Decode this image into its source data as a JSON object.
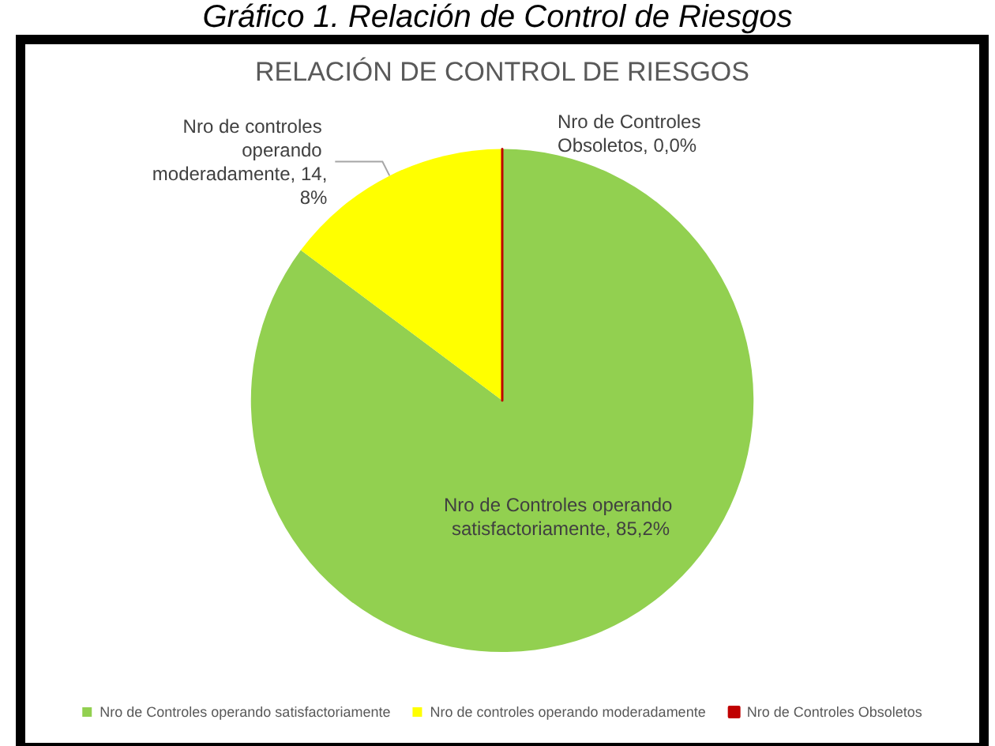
{
  "chart_data": {
    "type": "pie",
    "title": "RELACIÓN DE CONTROL DE RIESGOS",
    "annotations": [
      "Gráfico 1. Relación de Control de Riesgos"
    ],
    "categories": [
      "Nro de Controles operando satisfactoriamente",
      "Nro de controles operando moderadamente",
      "Nro de Controles Obsoletos"
    ],
    "values": [
      85.2,
      14.8,
      0.0
    ],
    "colors": [
      "#92d050",
      "#ffff00",
      "#c00000"
    ],
    "value_labels": [
      "Nro de Controles operando satisfactoriamente, 85,2%",
      "Nro de controles operando moderadamente, 14,8%",
      "Nro de Controles Obsoletos, 0,0%"
    ],
    "legend": "bottom"
  }
}
